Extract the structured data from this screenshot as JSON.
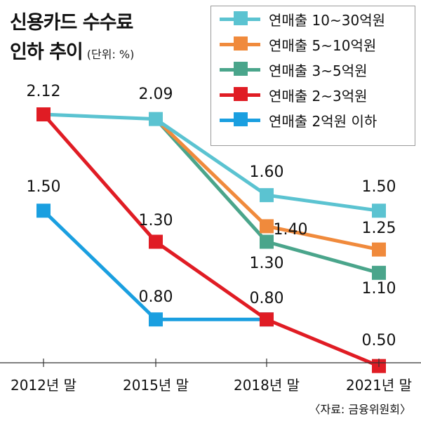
{
  "title_line1": "신용카드 수수료",
  "title_line2": "인하 추이",
  "unit": "(단위: %)",
  "source": "〈자료: 금융위원회〉",
  "chart_data": {
    "type": "line",
    "categories": [
      "2012년 말",
      "2015년 말",
      "2018년 말",
      "2021년 말"
    ],
    "ylim": [
      0.4,
      2.3
    ],
    "grid": false,
    "legend_position": "top-right",
    "series": [
      {
        "name": "연매출 10~30억원",
        "color": "#5bc3d1",
        "values": [
          2.12,
          2.09,
          1.6,
          1.5
        ],
        "labels": [
          "2.12",
          "2.09",
          "1.60",
          "1.50"
        ]
      },
      {
        "name": "연매출 5~10억원",
        "color": "#f08a3c",
        "values": [
          null,
          2.09,
          1.4,
          1.25
        ],
        "labels": [
          null,
          null,
          "1.40",
          "1.25"
        ]
      },
      {
        "name": "연매출 3~5억원",
        "color": "#4aa58b",
        "values": [
          null,
          2.09,
          1.3,
          1.1
        ],
        "labels": [
          null,
          null,
          "1.30",
          "1.10"
        ]
      },
      {
        "name": "연매출 2~3억원",
        "color": "#e01c24",
        "values": [
          2.12,
          1.3,
          0.8,
          0.5
        ],
        "labels": [
          null,
          "1.30",
          "0.80",
          "0.50"
        ]
      },
      {
        "name": "연매출 2억원 이하",
        "color": "#1a9fe0",
        "values": [
          1.5,
          0.8,
          0.8,
          null
        ],
        "labels": [
          "1.50",
          "0.80",
          null,
          null
        ]
      }
    ]
  }
}
